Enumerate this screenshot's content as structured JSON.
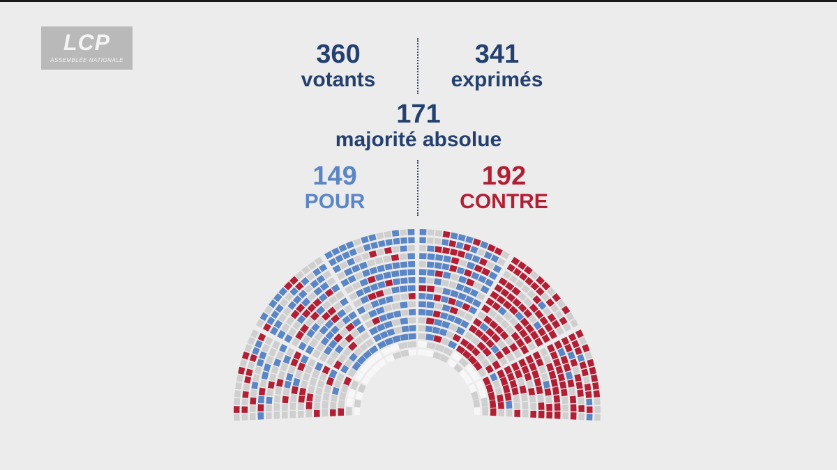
{
  "logo": {
    "main": "LCP",
    "sub": "ASSEMBLÉE NATIONALE"
  },
  "stats": {
    "votants": {
      "value": "360",
      "label": "votants"
    },
    "exprimes": {
      "value": "341",
      "label": "exprimés"
    },
    "majorite": {
      "value": "171",
      "label": "majorité absolue"
    },
    "pour": {
      "value": "149",
      "label": "POUR",
      "color": "#5b86c5"
    },
    "contre": {
      "value": "192",
      "label": "CONTRE",
      "color": "#b21f35"
    }
  },
  "colors": {
    "title": "#24406e",
    "absent": "#cfcfcf",
    "empty": "#f7f7f7",
    "background": "#ececec"
  },
  "chart_data": {
    "type": "hemicycle",
    "series": [
      {
        "name": "POUR",
        "value": 149
      },
      {
        "name": "CONTRE",
        "value": 192
      }
    ]
  }
}
